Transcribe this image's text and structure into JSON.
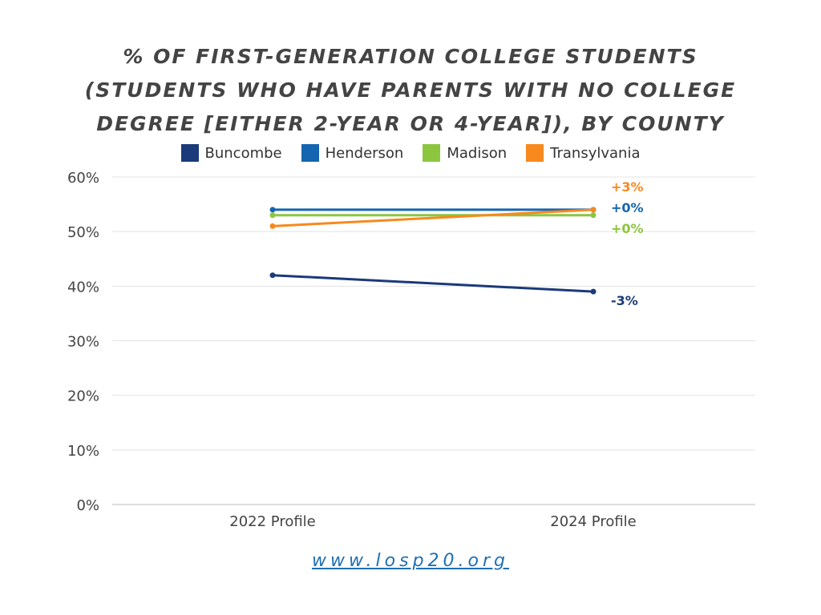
{
  "chart_data": {
    "type": "line",
    "title": "% OF FIRST-GENERATION COLLEGE STUDENTS (STUDENTS WHO HAVE PARENTS WITH NO COLLEGE DEGREE [EITHER 2-YEAR OR 4-YEAR]), BY COUNTY",
    "categories": [
      "2022 Profile",
      "2024 Profile"
    ],
    "ylim": [
      0,
      60
    ],
    "yticks": [
      "0%",
      "10%",
      "20%",
      "30%",
      "40%",
      "50%",
      "60%"
    ],
    "ytick_values": [
      0,
      10,
      20,
      30,
      40,
      50,
      60
    ],
    "grid": true,
    "legend_position": "top",
    "series": [
      {
        "name": "Buncombe",
        "values": [
          42,
          39
        ],
        "color": "#1a3a7a",
        "change_label": "-3%"
      },
      {
        "name": "Henderson",
        "values": [
          54,
          54
        ],
        "color": "#1565b0",
        "change_label": "+0%"
      },
      {
        "name": "Madison",
        "values": [
          53,
          53
        ],
        "color": "#8cc63f",
        "change_label": "+0%"
      },
      {
        "name": "Transylvania",
        "values": [
          51,
          54
        ],
        "color": "#f7891e",
        "change_label": "+3%"
      }
    ]
  },
  "source_link": "www.losp20.org"
}
